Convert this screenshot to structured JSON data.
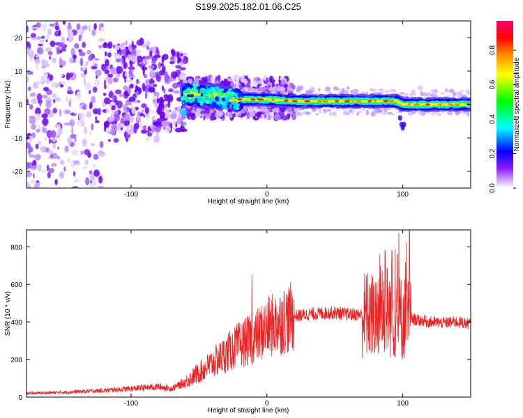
{
  "title": "S199.2025.182.01.06.C25",
  "chart_data": [
    {
      "type": "heatmap",
      "xlabel": "Height of straight line (km)",
      "ylabel": "Frequency (Hz)",
      "xlim": [
        -177,
        150
      ],
      "ylim": [
        -25,
        25
      ],
      "x_ticks": [
        -100,
        0,
        100
      ],
      "y_ticks": [
        -20,
        -10,
        0,
        10,
        20
      ],
      "colorbar": {
        "label": "Normalized spectral amplitude",
        "range": [
          0,
          0.97
        ],
        "ticks": [
          0.0,
          0.2,
          0.4,
          0.6,
          0.8
        ],
        "colors": [
          "#ffffff",
          "#7a00ff",
          "#0000ff",
          "#00ffff",
          "#00ff00",
          "#ffff00",
          "#ff7f00",
          "#ff0000",
          "#ff0080"
        ]
      },
      "ridge": {
        "x": [
          -60,
          -40,
          -20,
          0,
          20,
          40,
          60,
          80,
          95,
          100,
          105,
          150
        ],
        "y": [
          3,
          2.5,
          1.5,
          1.5,
          1,
          1,
          1,
          1,
          1,
          0,
          0,
          0
        ],
        "peak_amplitude": 0.9
      }
    },
    {
      "type": "line",
      "xlabel": "Height of straight line (km)",
      "ylabel": "SNR (10 * v/v)",
      "xlim": [
        -177,
        150
      ],
      "ylim": [
        0,
        890
      ],
      "x_ticks": [
        -100,
        0,
        100
      ],
      "y_ticks": [
        0,
        200,
        400,
        600,
        800
      ],
      "color": "#ee2222",
      "series": [
        {
          "x": [
            -177,
            -150,
            -120,
            -100,
            -80,
            -70,
            -60,
            -50,
            -40,
            -30,
            -20,
            -10,
            0,
            10,
            20,
            30,
            40,
            50,
            60,
            70,
            80,
            85,
            90,
            95,
            100,
            105,
            110,
            120,
            130,
            140,
            150
          ],
          "values": [
            20,
            25,
            35,
            45,
            55,
            45,
            80,
            130,
            180,
            230,
            280,
            310,
            370,
            400,
            430,
            440,
            445,
            450,
            440,
            440,
            430,
            500,
            450,
            430,
            420,
            420,
            410,
            400,
            395,
            400,
            390
          ]
        }
      ],
      "spikes": [
        {
          "x": -11,
          "value": 650
        },
        {
          "x": 87,
          "value": 780
        },
        {
          "x": 92,
          "value": 780
        },
        {
          "x": 96,
          "value": 760
        },
        {
          "x": 102,
          "value": 720
        },
        {
          "x": 105,
          "value": 890
        }
      ]
    }
  ]
}
